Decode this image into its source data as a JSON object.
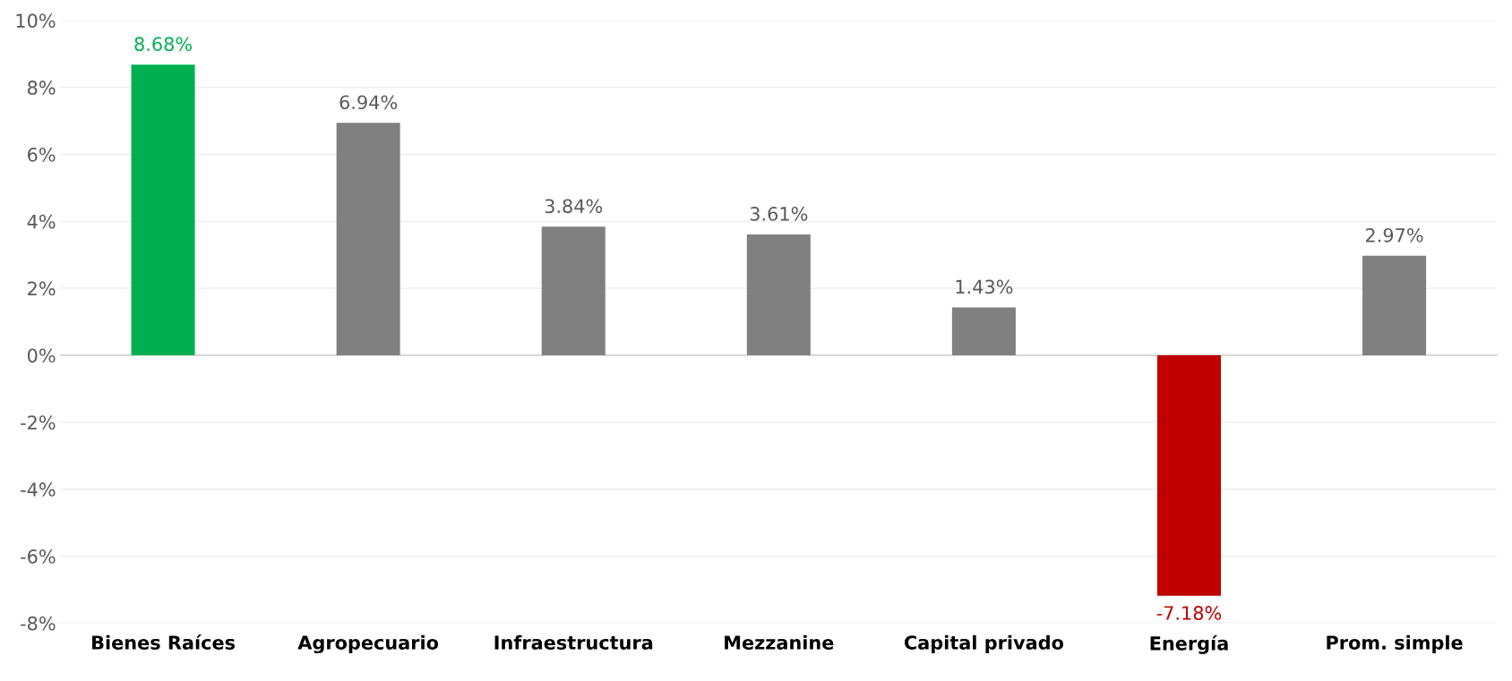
{
  "chart_data": {
    "type": "bar",
    "categories": [
      "Bienes Raíces",
      "Agropecuario",
      "Infraestructura",
      "Mezzanine",
      "Capital privado",
      "Energía",
      "Prom. simple"
    ],
    "values": [
      8.68,
      6.94,
      3.84,
      3.61,
      1.43,
      -7.18,
      2.97
    ],
    "colors": [
      "#00b050",
      "#808080",
      "#808080",
      "#808080",
      "#808080",
      "#c00000",
      "#808080"
    ],
    "value_labels": [
      "8.68%",
      "6.94%",
      "3.84%",
      "3.61%",
      "1.43%",
      "-7.18%",
      "2.97%"
    ],
    "ylim": [
      -8,
      10
    ],
    "yticks": [
      {
        "value": -8,
        "label": "-8%"
      },
      {
        "value": -6,
        "label": "-6%"
      },
      {
        "value": -4,
        "label": "-4%"
      },
      {
        "value": -2,
        "label": "-2%"
      },
      {
        "value": 0,
        "label": "0%"
      },
      {
        "value": 2,
        "label": "2%"
      },
      {
        "value": 4,
        "label": "4%"
      },
      {
        "value": 6,
        "label": "6%"
      },
      {
        "value": 8,
        "label": "8%"
      },
      {
        "value": 10,
        "label": "10%"
      }
    ],
    "grid": "y",
    "legend": false
  }
}
